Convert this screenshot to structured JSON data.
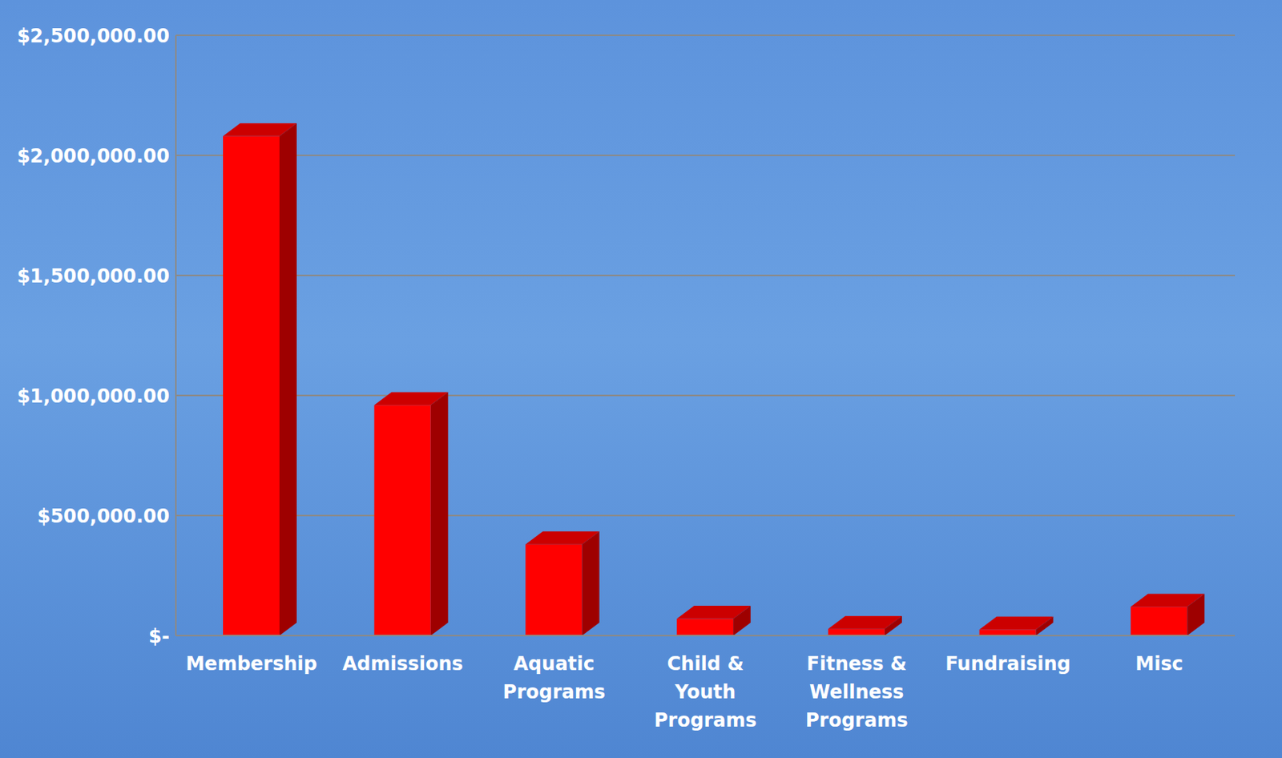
{
  "chart_data": {
    "type": "bar",
    "categories": [
      "Membership",
      "Admissions",
      "Aquatic Programs",
      "Child & Youth Programs",
      "Fitness & Wellness Programs",
      "Fundraising",
      "Misc"
    ],
    "values": [
      2080000,
      960000,
      380000,
      70000,
      28000,
      25000,
      120000
    ],
    "color": "#ff0000",
    "ylim": [
      0,
      2500000
    ],
    "yticks": [
      {
        "value": 0,
        "label": "$-"
      },
      {
        "value": 500000,
        "label": "$500,000.00"
      },
      {
        "value": 1000000,
        "label": "$1,000,000.00"
      },
      {
        "value": 1500000,
        "label": "$1,500,000.00"
      },
      {
        "value": 2000000,
        "label": "$2,000,000.00"
      },
      {
        "value": 2500000,
        "label": "$2,500,000.00"
      }
    ],
    "grid": true
  }
}
